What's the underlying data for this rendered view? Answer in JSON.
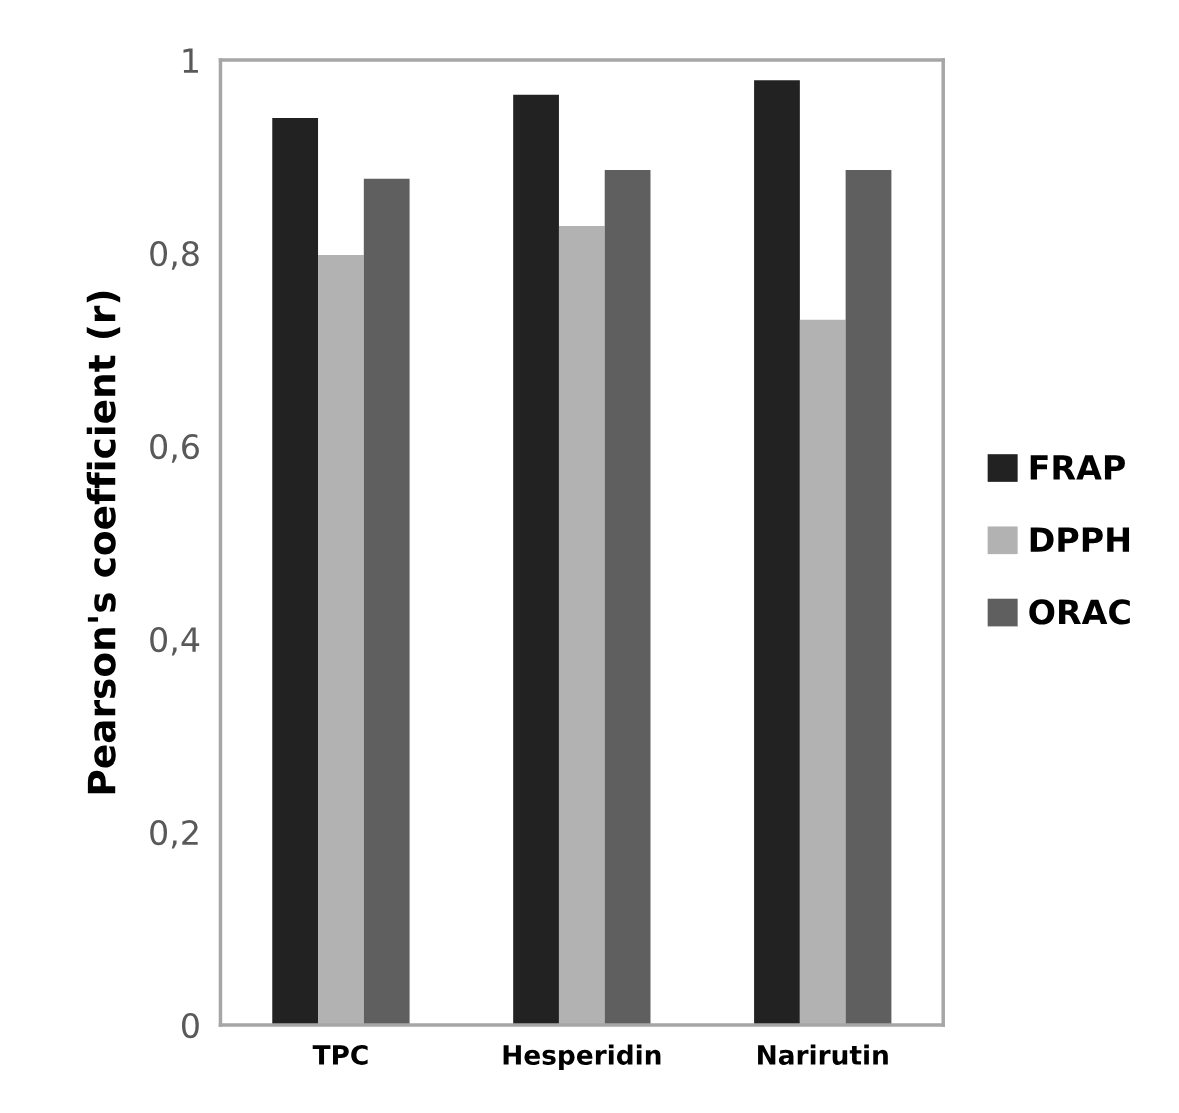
{
  "chart_data": {
    "type": "bar",
    "ylabel": "Pearson's coefficient (r)",
    "categories": [
      "TPC",
      "Hesperidin",
      "Narirutin"
    ],
    "series": [
      {
        "name": "FRAP",
        "color": "#222222",
        "values": [
          0.94,
          0.964,
          0.979
        ]
      },
      {
        "name": "DPPH",
        "color": "#b2b2b2",
        "values": [
          0.798,
          0.828,
          0.731
        ]
      },
      {
        "name": "ORAC",
        "color": "#5f5f5f",
        "values": [
          0.877,
          0.886,
          0.886
        ]
      }
    ],
    "ylim": [
      0,
      1
    ],
    "yticks": [
      0,
      {
        "value": 0.2,
        "label": "0,2"
      },
      {
        "value": 0.4,
        "label": "0,4"
      },
      {
        "value": 0.6,
        "label": "0,6"
      },
      {
        "value": 0.8,
        "label": "0,8"
      },
      1
    ],
    "grid": false,
    "legend": "right"
  }
}
